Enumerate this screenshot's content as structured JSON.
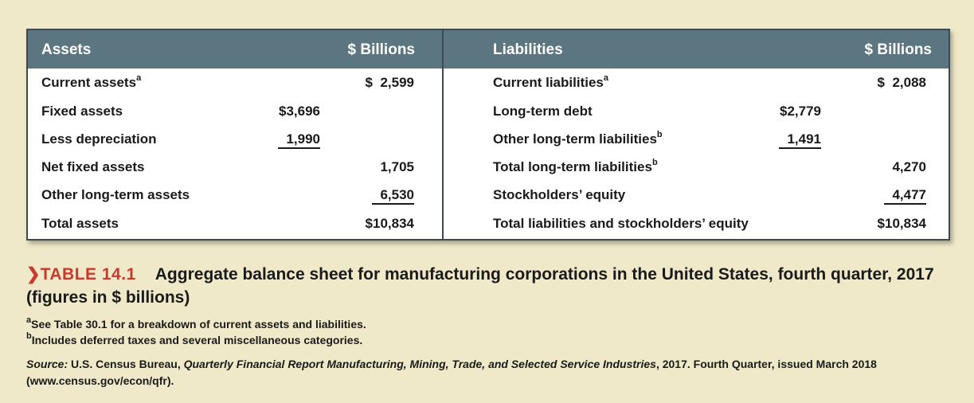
{
  "table": {
    "assets_header": "Assets",
    "assets_units_header": "$ Billions",
    "liabilities_header": "Liabilities",
    "liabilities_units_header": "$ Billions",
    "assets_rows": [
      {
        "label": "Current assets",
        "sup": "a",
        "mid": "",
        "end": "$  2,599",
        "mid_underline": false,
        "end_underline": false
      },
      {
        "label": "Fixed assets",
        "sup": "",
        "mid": "$3,696",
        "end": "",
        "mid_underline": false,
        "end_underline": false
      },
      {
        "label": "Less depreciation",
        "sup": "",
        "mid": "1,990",
        "end": "",
        "mid_underline": true,
        "end_underline": false
      },
      {
        "label": "Net fixed assets",
        "sup": "",
        "mid": "",
        "end": "1,705",
        "mid_underline": false,
        "end_underline": false
      },
      {
        "label": "Other long-term assets",
        "sup": "",
        "mid": "",
        "end": "6,530",
        "mid_underline": false,
        "end_underline": true
      },
      {
        "label": "Total assets",
        "sup": "",
        "mid": "",
        "end": "$10,834",
        "mid_underline": false,
        "end_underline": false
      }
    ],
    "liabilities_rows": [
      {
        "label": "Current liabilities",
        "sup": "a",
        "mid": "",
        "end": "$  2,088",
        "mid_underline": false,
        "end_underline": false
      },
      {
        "label": "Long-term debt",
        "sup": "",
        "mid": "$2,779",
        "end": "",
        "mid_underline": false,
        "end_underline": false
      },
      {
        "label": "Other long-term liabilities",
        "sup": "b",
        "mid": "1,491",
        "end": "",
        "mid_underline": true,
        "end_underline": false
      },
      {
        "label": "Total long-term liabilities",
        "sup": "b",
        "mid": "",
        "end": "4,270",
        "mid_underline": false,
        "end_underline": false
      },
      {
        "label": "Stockholders’ equity",
        "sup": "",
        "mid": "",
        "end": "4,477",
        "mid_underline": false,
        "end_underline": true
      },
      {
        "label": "Total liabilities and stockholders’ equity",
        "sup": "",
        "mid": "",
        "end": "$10,834",
        "mid_underline": false,
        "end_underline": false
      }
    ]
  },
  "caption": {
    "chevron": "❯",
    "label": "TABLE 14.1",
    "text": "Aggregate balance sheet for manufacturing corporations in the United States, fourth quarter, 2017 (figures in $ billions)"
  },
  "notes": {
    "a_marker": "a",
    "a_text": "See Table 30.1 for a breakdown of current assets and liabilities.",
    "b_marker": "b",
    "b_text": "Includes deferred taxes and several miscellaneous categories."
  },
  "source": {
    "label": "Source:",
    "prefix": "U.S. Census Bureau,",
    "title": "Quarterly Financial Report Manufacturing, Mining, Trade, and Selected Service Industries",
    "suffix": ", 2017. Fourth Quarter, issued March 2018 (www.census.gov/econ/qfr)."
  },
  "colors": {
    "background": "#efe9c9",
    "header": "#5b7581",
    "accent": "#c9392c"
  }
}
